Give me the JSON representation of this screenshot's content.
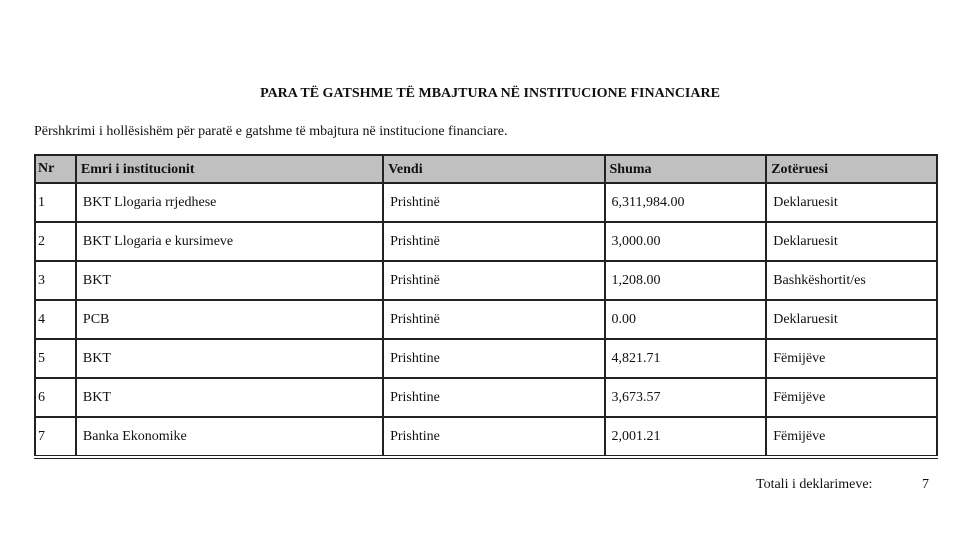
{
  "title": "PARA TË GATSHME TË MBAJTURA NË INSTITUCIONE FINANCIARE",
  "description": "Përshkrimi i hollësishëm për paratë e gatshme të mbajtura në institucione financiare.",
  "columns": [
    "Nr",
    "Emri i institucionit",
    "Vendi",
    "Shuma",
    "Zotëruesi"
  ],
  "rows": [
    [
      "1",
      "BKT Llogaria rrjedhese",
      "Prishtinë",
      "6,311,984.00",
      "Deklaruesit"
    ],
    [
      "2",
      "BKT Llogaria e kursimeve",
      "Prishtinë",
      "3,000.00",
      "Deklaruesit"
    ],
    [
      "3",
      "BKT",
      "Prishtinë",
      "1,208.00",
      "Bashkëshortit/es"
    ],
    [
      "4",
      "PCB",
      "Prishtinë",
      "0.00",
      "Deklaruesit"
    ],
    [
      "5",
      "BKT",
      "Prishtine",
      "4,821.71",
      "Fëmijëve"
    ],
    [
      "6",
      "BKT",
      "Prishtine",
      "3,673.57",
      "Fëmijëve"
    ],
    [
      "7",
      "Banka Ekonomike",
      "Prishtine",
      "2,001.21",
      "Fëmijëve"
    ]
  ],
  "total": {
    "label": "Totali i deklarimeve:",
    "value": "7"
  },
  "colors": {
    "header_bg": "#c0c0c0"
  }
}
